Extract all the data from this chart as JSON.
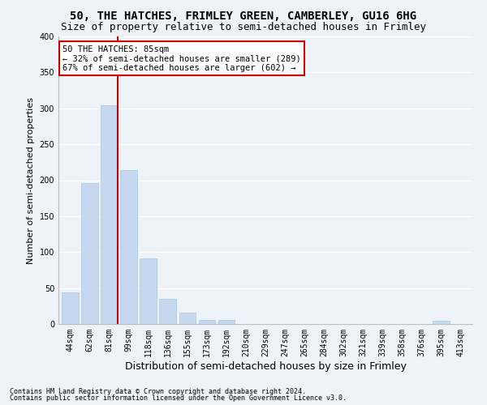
{
  "title1": "50, THE HATCHES, FRIMLEY GREEN, CAMBERLEY, GU16 6HG",
  "title2": "Size of property relative to semi-detached houses in Frimley",
  "xlabel": "Distribution of semi-detached houses by size in Frimley",
  "ylabel": "Number of semi-detached properties",
  "categories": [
    "44sqm",
    "62sqm",
    "81sqm",
    "99sqm",
    "118sqm",
    "136sqm",
    "155sqm",
    "173sqm",
    "192sqm",
    "210sqm",
    "229sqm",
    "247sqm",
    "265sqm",
    "284sqm",
    "302sqm",
    "321sqm",
    "339sqm",
    "358sqm",
    "376sqm",
    "395sqm",
    "413sqm"
  ],
  "values": [
    44,
    196,
    304,
    214,
    91,
    35,
    16,
    6,
    6,
    0,
    0,
    0,
    0,
    0,
    0,
    0,
    0,
    0,
    0,
    5,
    0
  ],
  "bar_color": "#c5d8f0",
  "bar_edge_color": "#a8c4e0",
  "vline_color": "#cc0000",
  "vline_bin_index": 2,
  "annotation_text": "50 THE HATCHES: 85sqm\n← 32% of semi-detached houses are smaller (289)\n67% of semi-detached houses are larger (602) →",
  "annotation_box_color": "#ffffff",
  "annotation_box_edge": "#cc0000",
  "ylim": [
    0,
    400
  ],
  "yticks": [
    0,
    50,
    100,
    150,
    200,
    250,
    300,
    350,
    400
  ],
  "footer1": "Contains HM Land Registry data © Crown copyright and database right 2024.",
  "footer2": "Contains public sector information licensed under the Open Government Licence v3.0.",
  "bg_color": "#eef3f9",
  "plot_bg_color": "#eef3f9",
  "grid_color": "#ffffff",
  "title1_fontsize": 10,
  "title2_fontsize": 9,
  "tick_fontsize": 7,
  "ylabel_fontsize": 8,
  "xlabel_fontsize": 9,
  "annotation_fontsize": 7.5,
  "footer_fontsize": 6
}
